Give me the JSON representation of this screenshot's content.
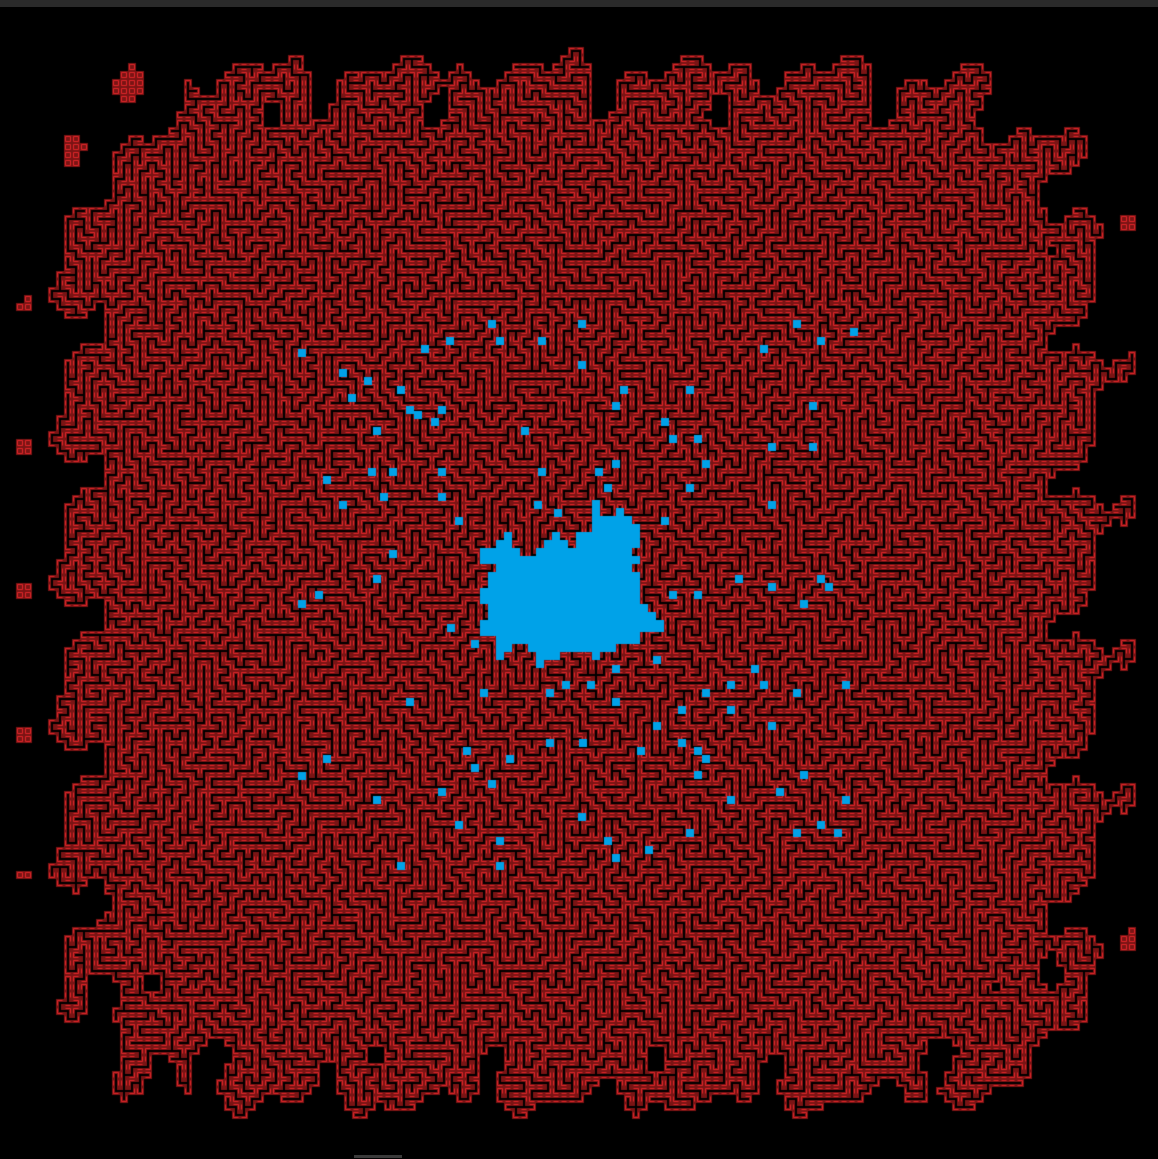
{
  "colors": {
    "background": "#000000",
    "title_strip": "#2a2a2a",
    "maze_fill": "#7a1414",
    "maze_wall": "#e0262a",
    "maze_passage": "#000000",
    "flood_fill": "#00a2e8"
  },
  "maze": {
    "type": "growing-maze",
    "seed": 7,
    "flood_region": "blue",
    "scattered_marks": "blue"
  }
}
